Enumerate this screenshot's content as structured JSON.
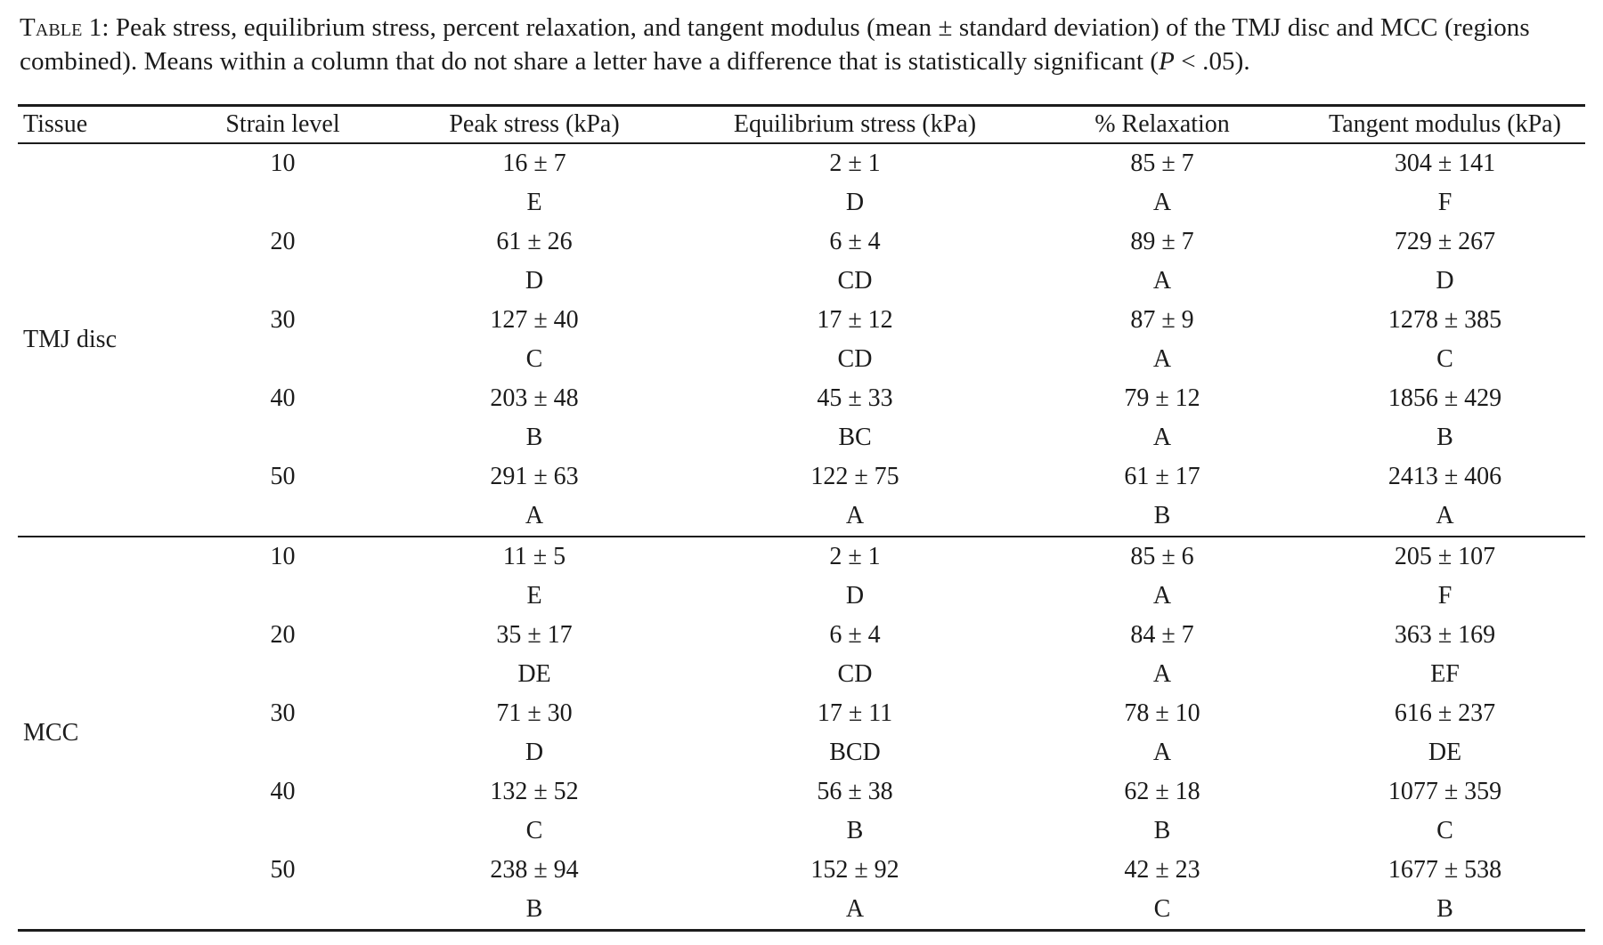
{
  "caption": {
    "label": "Table 1:",
    "body1": " Peak stress, equilibrium stress, percent relaxation, and tangent modulus (mean ± standard deviation) of the TMJ disc and MCC (regions combined). Means within a column that do not share a letter have a difference that is statistically significant (",
    "p_symbol": "P",
    "body2": " < .05)."
  },
  "table": {
    "headers": [
      "Tissue",
      "Strain level",
      "Peak stress (kPa)",
      "Equilibrium stress (kPa)",
      "% Relaxation",
      "Tangent modulus (kPa)"
    ],
    "sections": [
      {
        "tissue": "TMJ disc",
        "rows": [
          {
            "strain": "10",
            "peak": "16 ± 7",
            "peak_letter": "E",
            "eq": "2 ± 1",
            "eq_letter": "D",
            "relax": "85 ± 7",
            "relax_letter": "A",
            "tangent": "304 ± 141",
            "tangent_letter": "F"
          },
          {
            "strain": "20",
            "peak": "61 ± 26",
            "peak_letter": "D",
            "eq": "6 ± 4",
            "eq_letter": "CD",
            "relax": "89 ± 7",
            "relax_letter": "A",
            "tangent": "729 ± 267",
            "tangent_letter": "D"
          },
          {
            "strain": "30",
            "peak": "127 ± 40",
            "peak_letter": "C",
            "eq": "17 ± 12",
            "eq_letter": "CD",
            "relax": "87 ± 9",
            "relax_letter": "A",
            "tangent": "1278 ± 385",
            "tangent_letter": "C"
          },
          {
            "strain": "40",
            "peak": "203 ± 48",
            "peak_letter": "B",
            "eq": "45 ± 33",
            "eq_letter": "BC",
            "relax": "79 ± 12",
            "relax_letter": "A",
            "tangent": "1856 ± 429",
            "tangent_letter": "B"
          },
          {
            "strain": "50",
            "peak": "291 ± 63",
            "peak_letter": "A",
            "eq": "122 ± 75",
            "eq_letter": "A",
            "relax": "61 ± 17",
            "relax_letter": "B",
            "tangent": "2413 ± 406",
            "tangent_letter": "A"
          }
        ]
      },
      {
        "tissue": "MCC",
        "rows": [
          {
            "strain": "10",
            "peak": "11 ± 5",
            "peak_letter": "E",
            "eq": "2 ± 1",
            "eq_letter": "D",
            "relax": "85 ± 6",
            "relax_letter": "A",
            "tangent": "205 ± 107",
            "tangent_letter": "F"
          },
          {
            "strain": "20",
            "peak": "35 ± 17",
            "peak_letter": "DE",
            "eq": "6 ± 4",
            "eq_letter": "CD",
            "relax": "84 ± 7",
            "relax_letter": "A",
            "tangent": "363 ± 169",
            "tangent_letter": "EF"
          },
          {
            "strain": "30",
            "peak": "71 ± 30",
            "peak_letter": "D",
            "eq": "17 ± 11",
            "eq_letter": "BCD",
            "relax": "78 ± 10",
            "relax_letter": "A",
            "tangent": "616 ± 237",
            "tangent_letter": "DE"
          },
          {
            "strain": "40",
            "peak": "132 ± 52",
            "peak_letter": "C",
            "eq": "56 ± 38",
            "eq_letter": "B",
            "relax": "62 ± 18",
            "relax_letter": "B",
            "tangent": "1077 ± 359",
            "tangent_letter": "C"
          },
          {
            "strain": "50",
            "peak": "238 ± 94",
            "peak_letter": "B",
            "eq": "152 ± 92",
            "eq_letter": "A",
            "relax": "42 ± 23",
            "relax_letter": "C",
            "tangent": "1677 ± 538",
            "tangent_letter": "B"
          }
        ]
      }
    ]
  }
}
